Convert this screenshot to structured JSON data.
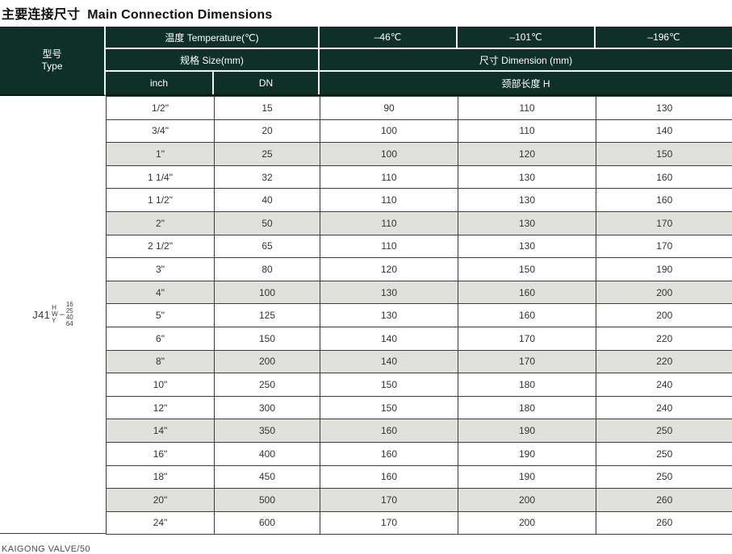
{
  "title": {
    "zh": "主要连接尺寸",
    "en": "Main Connection Dimensions"
  },
  "table": {
    "type_header": {
      "zh": "型号",
      "en": "Type"
    },
    "temperature_label": "温度 Temperature(℃)",
    "temp_columns": [
      "–46℃",
      "–101℃",
      "–196℃"
    ],
    "size_label": "规格 Size(mm)",
    "dimension_label": "尺寸 Dimension (mm)",
    "inch_label": "inch",
    "dn_label": "DN",
    "neck_label": "颈部长度 H",
    "model": {
      "prefix": "J41",
      "variants": [
        "H",
        "W",
        "Y"
      ],
      "dash": "–",
      "pressures": [
        "16",
        "25",
        "40",
        "64"
      ]
    },
    "column_keys": [
      "inch",
      "dn",
      "h46",
      "h101",
      "h196"
    ],
    "rows": [
      {
        "cells": [
          "1/2\"",
          "15",
          "90",
          "110",
          "130"
        ],
        "shaded": false
      },
      {
        "cells": [
          "3/4\"",
          "20",
          "100",
          "110",
          "140"
        ],
        "shaded": false
      },
      {
        "cells": [
          "1\"",
          "25",
          "100",
          "120",
          "150"
        ],
        "shaded": true
      },
      {
        "cells": [
          "1 1/4\"",
          "32",
          "110",
          "130",
          "160"
        ],
        "shaded": false
      },
      {
        "cells": [
          "1 1/2\"",
          "40",
          "110",
          "130",
          "160"
        ],
        "shaded": false
      },
      {
        "cells": [
          "2\"",
          "50",
          "110",
          "130",
          "170"
        ],
        "shaded": true
      },
      {
        "cells": [
          "2 1/2\"",
          "65",
          "110",
          "130",
          "170"
        ],
        "shaded": false
      },
      {
        "cells": [
          "3\"",
          "80",
          "120",
          "150",
          "190"
        ],
        "shaded": false
      },
      {
        "cells": [
          "4\"",
          "100",
          "130",
          "160",
          "200"
        ],
        "shaded": true
      },
      {
        "cells": [
          "5\"",
          "125",
          "130",
          "160",
          "200"
        ],
        "shaded": false
      },
      {
        "cells": [
          "6\"",
          "150",
          "140",
          "170",
          "220"
        ],
        "shaded": false
      },
      {
        "cells": [
          "8\"",
          "200",
          "140",
          "170",
          "220"
        ],
        "shaded": true
      },
      {
        "cells": [
          "10\"",
          "250",
          "150",
          "180",
          "240"
        ],
        "shaded": false
      },
      {
        "cells": [
          "12\"",
          "300",
          "150",
          "180",
          "240"
        ],
        "shaded": false
      },
      {
        "cells": [
          "14\"",
          "350",
          "160",
          "190",
          "250"
        ],
        "shaded": true
      },
      {
        "cells": [
          "16\"",
          "400",
          "160",
          "190",
          "250"
        ],
        "shaded": false
      },
      {
        "cells": [
          "18\"",
          "450",
          "160",
          "190",
          "250"
        ],
        "shaded": false
      },
      {
        "cells": [
          "20\"",
          "500",
          "170",
          "200",
          "260"
        ],
        "shaded": true
      },
      {
        "cells": [
          "24\"",
          "600",
          "170",
          "200",
          "260"
        ],
        "shaded": false
      }
    ]
  },
  "footer": "KAIGONG VALVE/50",
  "colors": {
    "header_bg": "#0e3028",
    "shaded_row": "#e0e0dd",
    "body_border": "#3c3c3c",
    "header_sep": "#f4f6f5"
  }
}
